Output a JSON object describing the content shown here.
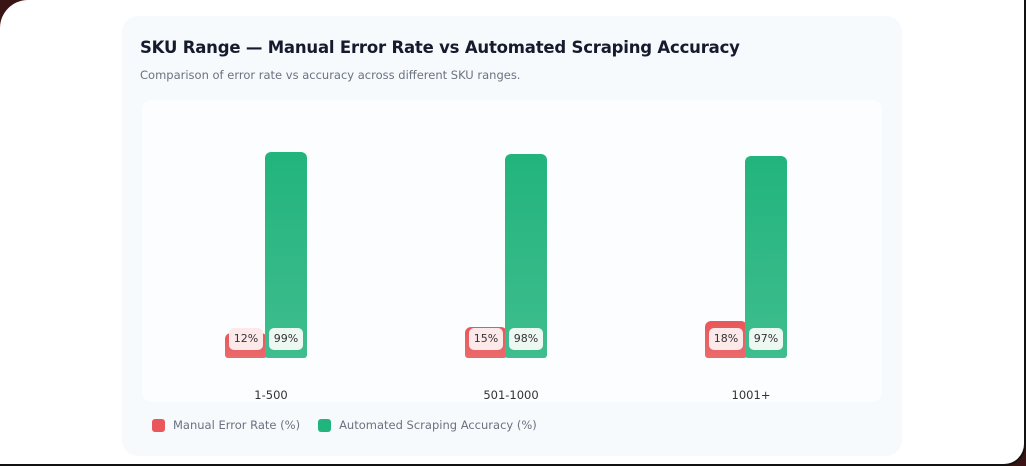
{
  "card": {
    "title": "SKU Range — Manual Error Rate vs Automated Scraping Accuracy",
    "subtitle": "Comparison of error rate vs accuracy across different SKU ranges."
  },
  "colors": {
    "manual": "#e9575a",
    "automated": "#22b47d"
  },
  "legend": [
    {
      "label": "Manual Error Rate (%)",
      "color": "#e9575a"
    },
    {
      "label": "Automated Scraping Accuracy (%)",
      "color": "#22b47d"
    }
  ],
  "chart_data": {
    "type": "bar",
    "title": "SKU Range — Manual Error Rate vs Automated Scraping Accuracy",
    "subtitle": "Comparison of error rate vs accuracy across different SKU ranges.",
    "categories": [
      "1-500",
      "501-1000",
      "1001+"
    ],
    "series": [
      {
        "name": "Manual Error Rate (%)",
        "values": [
          12,
          15,
          18
        ],
        "labels": [
          "12%",
          "15%",
          "18%"
        ]
      },
      {
        "name": "Automated Scraping Accuracy (%)",
        "values": [
          99,
          98,
          97
        ],
        "labels": [
          "99%",
          "98%",
          "97%"
        ]
      }
    ],
    "xlabel": "",
    "ylabel": "",
    "ylim": [
      0,
      100
    ],
    "grid": false,
    "legend_position": "bottom-left"
  }
}
